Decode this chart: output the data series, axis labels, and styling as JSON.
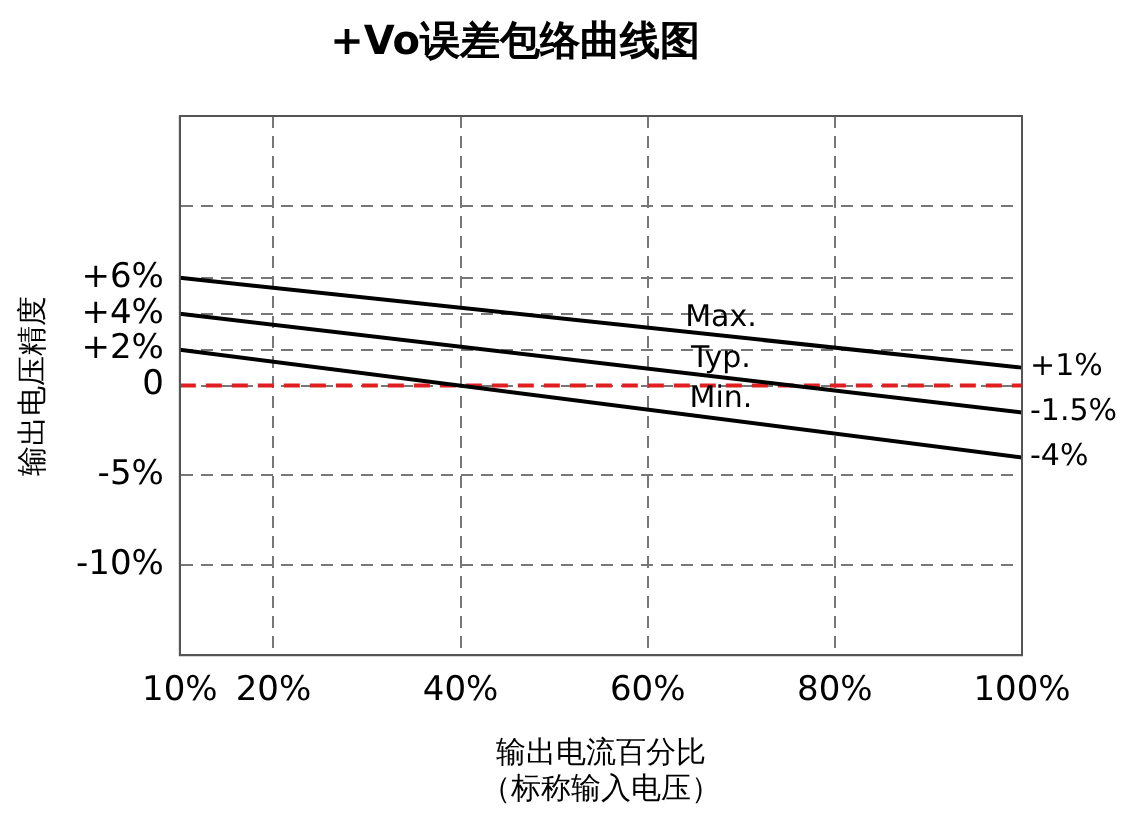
{
  "chart_data": {
    "type": "line",
    "title": "+Vo误差包络曲线图",
    "xlabel": "输出电流百分比",
    "annotations": [
      "（标称输入电压）"
    ],
    "ylabel": "输出电压精度",
    "x": [
      10,
      100
    ],
    "series": [
      {
        "name": "Max.",
        "color": "#000000",
        "values": [
          6,
          1
        ],
        "value_labels": [
          null,
          "+1%"
        ]
      },
      {
        "name": "Typ.",
        "color": "#000000",
        "values": [
          4,
          -1.5
        ],
        "value_labels": [
          null,
          "-1.5%"
        ]
      },
      {
        "name": "Min.",
        "color": "#000000",
        "values": [
          2,
          -4
        ],
        "value_labels": [
          null,
          "-4%"
        ]
      }
    ],
    "xlim": [
      10,
      100
    ],
    "xticks": [
      {
        "value": 10,
        "label": "10%"
      },
      {
        "value": 20,
        "label": "20%"
      },
      {
        "value": 40,
        "label": "40%"
      },
      {
        "value": 60,
        "label": "60%"
      },
      {
        "value": 80,
        "label": "80%"
      },
      {
        "value": 100,
        "label": "100%"
      }
    ],
    "ylim": [
      -15,
      15
    ],
    "yticks": [
      {
        "value": 10,
        "label": null
      },
      {
        "value": 6,
        "label": "+6%"
      },
      {
        "value": 4,
        "label": "+4%"
      },
      {
        "value": 2,
        "label": "+2%"
      },
      {
        "value": 0,
        "label": "0"
      },
      {
        "value": -5,
        "label": "-5%"
      },
      {
        "value": -10,
        "label": "-10%"
      }
    ],
    "ref_lines": [
      {
        "axis": "y",
        "value": 0,
        "color": "#e02020",
        "line_style": "dashed"
      }
    ],
    "grid": true,
    "legend": false,
    "marker": "none",
    "line_style": "solid"
  }
}
